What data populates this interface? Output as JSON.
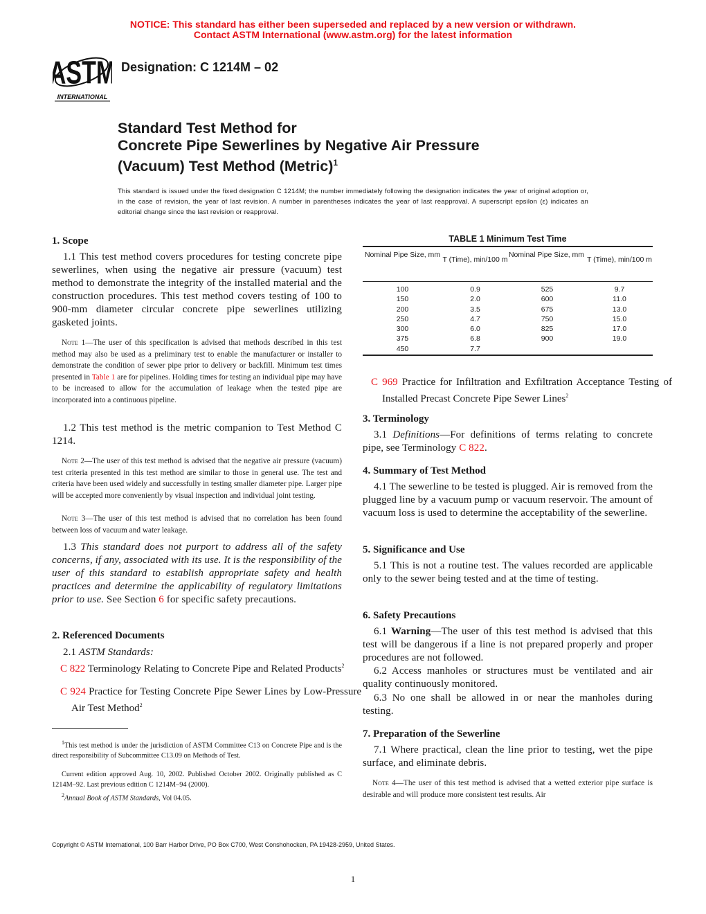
{
  "notice": {
    "line1": "NOTICE: This standard has either been superseded and replaced by a new version or withdrawn.",
    "line2": "Contact ASTM International (www.astm.org) for the latest information",
    "color": "#e8141b"
  },
  "logo": {
    "text": "ASTM",
    "sub": "INTERNATIONAL"
  },
  "designation": "Designation: C 1214M – 02",
  "title": {
    "line1": "Standard Test Method for",
    "line2": "Concrete Pipe Sewerlines by Negative Air Pressure",
    "line3": "(Vacuum) Test Method (Metric)",
    "sup": "1"
  },
  "intro": "This standard is issued under the fixed designation C 1214M; the number immediately following the designation indicates the year of original adoption or, in the case of revision, the year of last revision. A number in parentheses indicates the year of last reapproval. A superscript epsilon (ε) indicates an editorial change since the last revision or reapproval.",
  "scope": {
    "heading": "1.  Scope",
    "p11": "1.1  This test method covers procedures for testing concrete pipe sewerlines, when using the negative air pressure (vacuum) test method to demonstrate the integrity of the installed material and the construction procedures. This test method covers testing of 100 to 900-mm diameter circular concrete pipe sewerlines utilizing gasketed joints.",
    "note1_label": "Note",
    "note1_a": " 1—The user of this specification is advised that methods described in this test method may also be used as a preliminary test to enable the manufacturer or installer to demonstrate the condition of sewer pipe prior to delivery or backfill. Minimum test times presented in ",
    "note1_link": "Table 1",
    "note1_b": " are for pipelines. Holding times for testing an individual pipe may have to be increased to allow for the accumulation of leakage when the tested pipe are incorporated into a continuous pipeline.",
    "p12": "1.2  This test method is the metric companion to Test Method C 1214.",
    "note2_label": "Note",
    "note2": " 2—The user of this test method is advised that the negative air pressure (vacuum) test criteria presented in this test method are similar to those in general use. The test and criteria have been used widely and successfully in testing smaller diameter pipe. Larger pipe will be accepted more conveniently by visual inspection and individual joint testing.",
    "note3_label": "Note",
    "note3": " 3—The user of this test method is advised that no correlation has been found between loss of vacuum and water leakage.",
    "p13_num": "1.3  ",
    "p13_italic": "This standard does not purport to address all of the safety concerns, if any, associated with its use. It is the responsibility of the user of this standard to establish appropriate safety and health practices and determine the applicability of regulatory limitations prior to use.",
    "p13_a": " See Section ",
    "p13_link": "6",
    "p13_b": " for specific safety precautions."
  },
  "refs": {
    "heading": "2.  Referenced Documents",
    "p21_num": "2.1  ",
    "p21": "ASTM Standards:",
    "items": [
      {
        "code": "C 822",
        "text": " Terminology Relating to Concrete Pipe and Related Products",
        "sup": "2"
      },
      {
        "code": "C 924",
        "text": " Practice for Testing Concrete Pipe Sewer Lines by Low-Pressure Air Test Method",
        "sup": "2"
      },
      {
        "code": "C 969",
        "text": " Practice for Infiltration and Exfiltration Acceptance Testing of Installed Precast Concrete Pipe Sewer Lines",
        "sup": "2"
      }
    ]
  },
  "footnotes": {
    "f1_sup": "1",
    "f1": "This test method is under the jurisdiction of ASTM Committee C13 on Concrete Pipe and is the direct responsibility of Subcommittee C13.09 on Methods of Test.",
    "f1b": "Current edition approved Aug. 10, 2002. Published October 2002. Originally published as C 1214M–92. Last previous edition C 1214M–94 (2000).",
    "f2_sup": "2",
    "f2": "Annual Book of ASTM Standards",
    "f2b": ", Vol 04.05."
  },
  "table": {
    "title": "TABLE 1  Minimum Test Time",
    "headers": [
      "Nominal Pipe Size, mm",
      "T (Time), min/100 m",
      "Nominal Pipe Size, mm",
      "T (Time), min/100 m"
    ],
    "rows": [
      [
        "100",
        "0.9",
        "525",
        "9.7"
      ],
      [
        "150",
        "2.0",
        "600",
        "11.0"
      ],
      [
        "200",
        "3.5",
        "675",
        "13.0"
      ],
      [
        "250",
        "4.7",
        "750",
        "15.0"
      ],
      [
        "300",
        "6.0",
        "825",
        "17.0"
      ],
      [
        "375",
        "6.8",
        "900",
        "19.0"
      ],
      [
        "450",
        "7.7",
        "",
        ""
      ]
    ]
  },
  "terminology": {
    "heading": "3.  Terminology",
    "num": "3.1  ",
    "italic": "Definitions",
    "text": "—For definitions of terms relating to concrete pipe, see Terminology ",
    "link": "C 822",
    "end": "."
  },
  "summary": {
    "heading": "4.  Summary of Test Method",
    "p41": "4.1  The sewerline to be tested is plugged. Air is removed from the plugged line by a vacuum pump or vacuum reservoir. The amount of vacuum loss is used to determine the acceptability of the sewerline."
  },
  "significance": {
    "heading": "5.  Significance and Use",
    "p51": "5.1  This is not a routine test. The values recorded are applicable only to the sewer being tested and at the time of testing."
  },
  "safety": {
    "heading": "6.  Safety Precautions",
    "p61_num": "6.1  ",
    "p61_bold": "Warning",
    "p61": "—The user of this test method is advised that this test will be dangerous if a line is not prepared properly and proper procedures are not followed.",
    "p62": "6.2  Access manholes or structures must be ventilated and air quality continuously monitored.",
    "p63": "6.3  No one shall be allowed in or near the manholes during testing."
  },
  "prep": {
    "heading": "7.  Preparation of the Sewerline",
    "p71": "7.1  Where practical, clean the line prior to testing, wet the pipe surface, and eliminate debris.",
    "note4_label": "Note",
    "note4": " 4—The user of this test method is advised that a wetted exterior pipe surface is desirable and will produce more consistent test results. Air"
  },
  "copyright": "Copyright © ASTM International, 100 Barr Harbor Drive, PO Box C700, West Conshohocken, PA 19428-2959, United States.",
  "page_number": "1"
}
